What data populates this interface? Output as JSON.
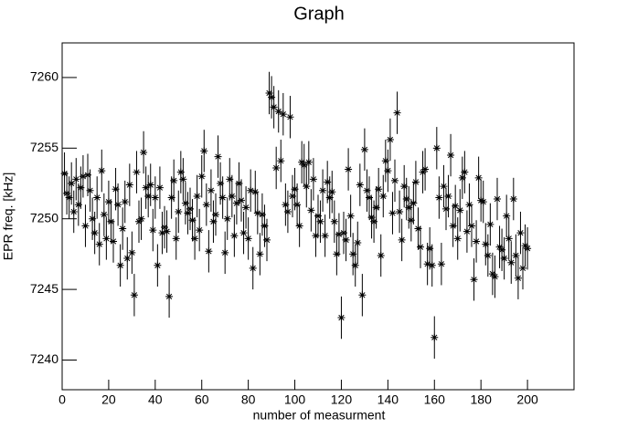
{
  "chart_data": {
    "type": "scatter",
    "title": "Graph",
    "x_label": "number of measurment",
    "y_label": "EPR freq. [kHz]",
    "xlim": [
      0,
      220
    ],
    "ylim": [
      7237.9,
      7262.45
    ],
    "xticks": [
      0,
      20,
      40,
      60,
      80,
      100,
      120,
      140,
      160,
      180,
      200
    ],
    "yticks": [
      7240,
      7245,
      7250,
      7255,
      7260
    ],
    "series": [
      {
        "color": "#000000",
        "y_error": 1.5,
        "x": [
          1,
          2,
          3,
          4,
          5,
          6,
          7,
          8,
          9,
          10,
          11,
          12,
          13,
          14,
          15,
          16,
          17,
          18,
          19,
          20,
          21,
          22,
          23,
          24,
          25,
          26,
          27,
          28,
          29,
          30,
          31,
          32,
          33,
          34,
          35,
          36,
          37,
          38,
          39,
          40,
          41,
          42,
          43,
          44,
          45,
          46,
          47,
          48,
          49,
          50,
          51,
          52,
          53,
          54,
          55,
          56,
          57,
          58,
          59,
          60,
          61,
          62,
          63,
          64,
          65,
          66,
          67,
          68,
          69,
          70,
          71,
          72,
          73,
          74,
          75,
          76,
          77,
          78,
          79,
          80,
          81,
          82,
          83,
          84,
          85,
          86,
          87,
          88,
          89,
          90,
          91,
          92,
          93,
          94,
          95,
          96,
          97,
          98,
          99,
          100,
          101,
          102,
          103,
          104,
          105,
          106,
          107,
          108,
          109,
          110,
          111,
          112,
          113,
          114,
          115,
          116,
          117,
          118,
          119,
          120,
          121,
          122,
          123,
          124,
          125,
          126,
          127,
          128,
          129,
          130,
          131,
          132,
          133,
          134,
          135,
          136,
          137,
          138,
          139,
          140,
          141,
          142,
          143,
          144,
          145,
          146,
          147,
          148,
          149,
          150,
          151,
          152,
          153,
          154,
          155,
          156,
          157,
          158,
          159,
          160,
          161,
          162,
          163,
          164,
          165,
          166,
          167,
          168,
          169,
          170,
          171,
          172,
          173,
          174,
          175,
          176,
          177,
          178,
          179,
          180,
          181,
          182,
          183,
          184,
          185,
          186,
          187,
          188,
          189,
          190,
          191,
          192,
          193,
          194,
          195,
          196,
          197,
          198,
          199,
          200
        ],
        "values": [
          7253.2,
          7251.8,
          7251.5,
          7252.5,
          7250.5,
          7252.8,
          7251.0,
          7252.2,
          7253.0,
          7249.5,
          7253.1,
          7252.0,
          7250.0,
          7249.0,
          7251.5,
          7248.2,
          7253.4,
          7250.3,
          7248.6,
          7251.2,
          7249.8,
          7248.4,
          7252.1,
          7251.0,
          7246.7,
          7249.3,
          7251.2,
          7247.2,
          7252.4,
          7247.6,
          7244.6,
          7253.3,
          7249.8,
          7250.0,
          7254.7,
          7252.2,
          7251.6,
          7252.4,
          7249.2,
          7251.5,
          7246.7,
          7252.2,
          7249.0,
          7249.4,
          7249.1,
          7244.5,
          7251.5,
          7252.7,
          7248.6,
          7250.5,
          7253.3,
          7252.8,
          7251.1,
          7250.4,
          7250.7,
          7249.9,
          7248.6,
          7251.6,
          7249.2,
          7253.0,
          7254.8,
          7251.0,
          7247.7,
          7252.0,
          7249.8,
          7250.3,
          7254.4,
          7252.5,
          7251.5,
          7247.6,
          7250.0,
          7252.8,
          7251.6,
          7248.8,
          7251.1,
          7252.5,
          7251.3,
          7249.0,
          7250.8,
          7248.6,
          7252.0,
          7246.5,
          7251.9,
          7250.4,
          7247.5,
          7250.3,
          7249.5,
          7248.5,
          7258.9,
          7258.6,
          7257.9,
          7253.6,
          7257.6,
          7254.1,
          7257.4,
          7251.0,
          7250.5,
          7257.2,
          7251.6,
          7252.1,
          7251.0,
          7249.5,
          7254.0,
          7253.8,
          7252.3,
          7254.0,
          7250.6,
          7252.8,
          7248.8,
          7250.2,
          7249.8,
          7252.0,
          7248.8,
          7252.6,
          7251.5,
          7251.9,
          7249.8,
          7247.5,
          7248.9,
          7243.0,
          7249.0,
          7248.5,
          7253.5,
          7250.2,
          7247.5,
          7246.7,
          7248.3,
          7252.4,
          7244.6,
          7254.9,
          7252.0,
          7251.5,
          7250.1,
          7249.8,
          7250.8,
          7252.1,
          7247.4,
          7251.6,
          7254.1,
          7253.4,
          7255.6,
          7250.4,
          7252.7,
          7257.5,
          7250.5,
          7248.5,
          7252.3,
          7251.4,
          7250.8,
          7249.9,
          7251.1,
          7252.6,
          7249.3,
          7248.0,
          7253.3,
          7253.5,
          7246.8,
          7247.9,
          7246.7,
          7241.6,
          7255.0,
          7251.5,
          7246.8,
          7252.3,
          7250.7,
          7251.6,
          7254.5,
          7249.5,
          7250.9,
          7248.6,
          7250.6,
          7252.9,
          7253.3,
          7249.1,
          7251.0,
          7249.5,
          7245.7,
          7248.4,
          7252.9,
          7251.3,
          7251.2,
          7248.2,
          7247.4,
          7249.6,
          7246.1,
          7245.9,
          7251.4,
          7248.0,
          7247.8,
          7247.2,
          7250.2,
          7248.6,
          7246.9,
          7251.4,
          7247.4,
          7245.8,
          7249.0,
          7246.5,
          7248.1,
          7247.9
        ]
      }
    ]
  }
}
